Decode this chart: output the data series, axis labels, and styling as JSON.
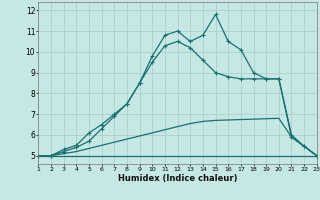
{
  "xlabel": "Humidex (Indice chaleur)",
  "xlim": [
    1,
    23
  ],
  "ylim": [
    4.6,
    12.4
  ],
  "yticks": [
    5,
    6,
    7,
    8,
    9,
    10,
    11,
    12
  ],
  "xticks": [
    1,
    2,
    3,
    4,
    5,
    6,
    7,
    8,
    9,
    10,
    11,
    12,
    13,
    14,
    15,
    16,
    17,
    18,
    19,
    20,
    21,
    22,
    23
  ],
  "bg_color": "#c5e8e5",
  "grid_color": "#aacfcc",
  "line_color": "#1a7070",
  "series": [
    {
      "x": [
        1,
        2,
        3,
        4,
        5,
        6,
        7,
        8,
        9,
        10,
        11,
        12,
        13,
        14,
        15,
        16,
        17,
        18,
        19,
        20,
        21,
        22,
        23
      ],
      "y": [
        5,
        5,
        5,
        5,
        5,
        5,
        5,
        5,
        5,
        5,
        5,
        5,
        5,
        5,
        5,
        5,
        5,
        5,
        5,
        5,
        5,
        5,
        5
      ],
      "marker": null,
      "linestyle": "-",
      "linewidth": 0.9
    },
    {
      "x": [
        1,
        2,
        3,
        4,
        5,
        6,
        7,
        8,
        9,
        10,
        11,
        12,
        13,
        14,
        15,
        16,
        17,
        18,
        19,
        20,
        21,
        22,
        23
      ],
      "y": [
        5,
        5,
        5.1,
        5.2,
        5.35,
        5.5,
        5.65,
        5.8,
        5.95,
        6.1,
        6.25,
        6.4,
        6.55,
        6.65,
        6.7,
        6.72,
        6.74,
        6.76,
        6.78,
        6.8,
        5.9,
        5.45,
        5.0
      ],
      "marker": null,
      "linestyle": "-",
      "linewidth": 0.9
    },
    {
      "x": [
        1,
        2,
        3,
        4,
        5,
        6,
        7,
        8,
        9,
        10,
        11,
        12,
        13,
        14,
        15,
        16,
        17,
        18,
        19,
        20,
        21,
        22,
        23
      ],
      "y": [
        5,
        5,
        5.2,
        5.4,
        5.7,
        6.3,
        6.9,
        7.5,
        8.5,
        9.5,
        10.3,
        10.5,
        10.2,
        9.6,
        9.0,
        8.8,
        8.7,
        8.7,
        8.7,
        8.7,
        5.9,
        5.45,
        5.0
      ],
      "marker": "+",
      "linestyle": "-",
      "linewidth": 0.9
    },
    {
      "x": [
        1,
        2,
        3,
        4,
        5,
        6,
        7,
        8,
        9,
        10,
        11,
        12,
        13,
        14,
        15,
        16,
        17,
        18,
        19,
        20,
        21,
        22,
        23
      ],
      "y": [
        5,
        5,
        5.3,
        5.5,
        6.1,
        6.5,
        7.0,
        7.5,
        8.5,
        9.8,
        10.8,
        11.0,
        10.5,
        10.8,
        11.8,
        10.5,
        10.1,
        9.0,
        8.7,
        8.7,
        6.0,
        5.45,
        5.0
      ],
      "marker": "+",
      "linestyle": "-",
      "linewidth": 0.9
    }
  ]
}
